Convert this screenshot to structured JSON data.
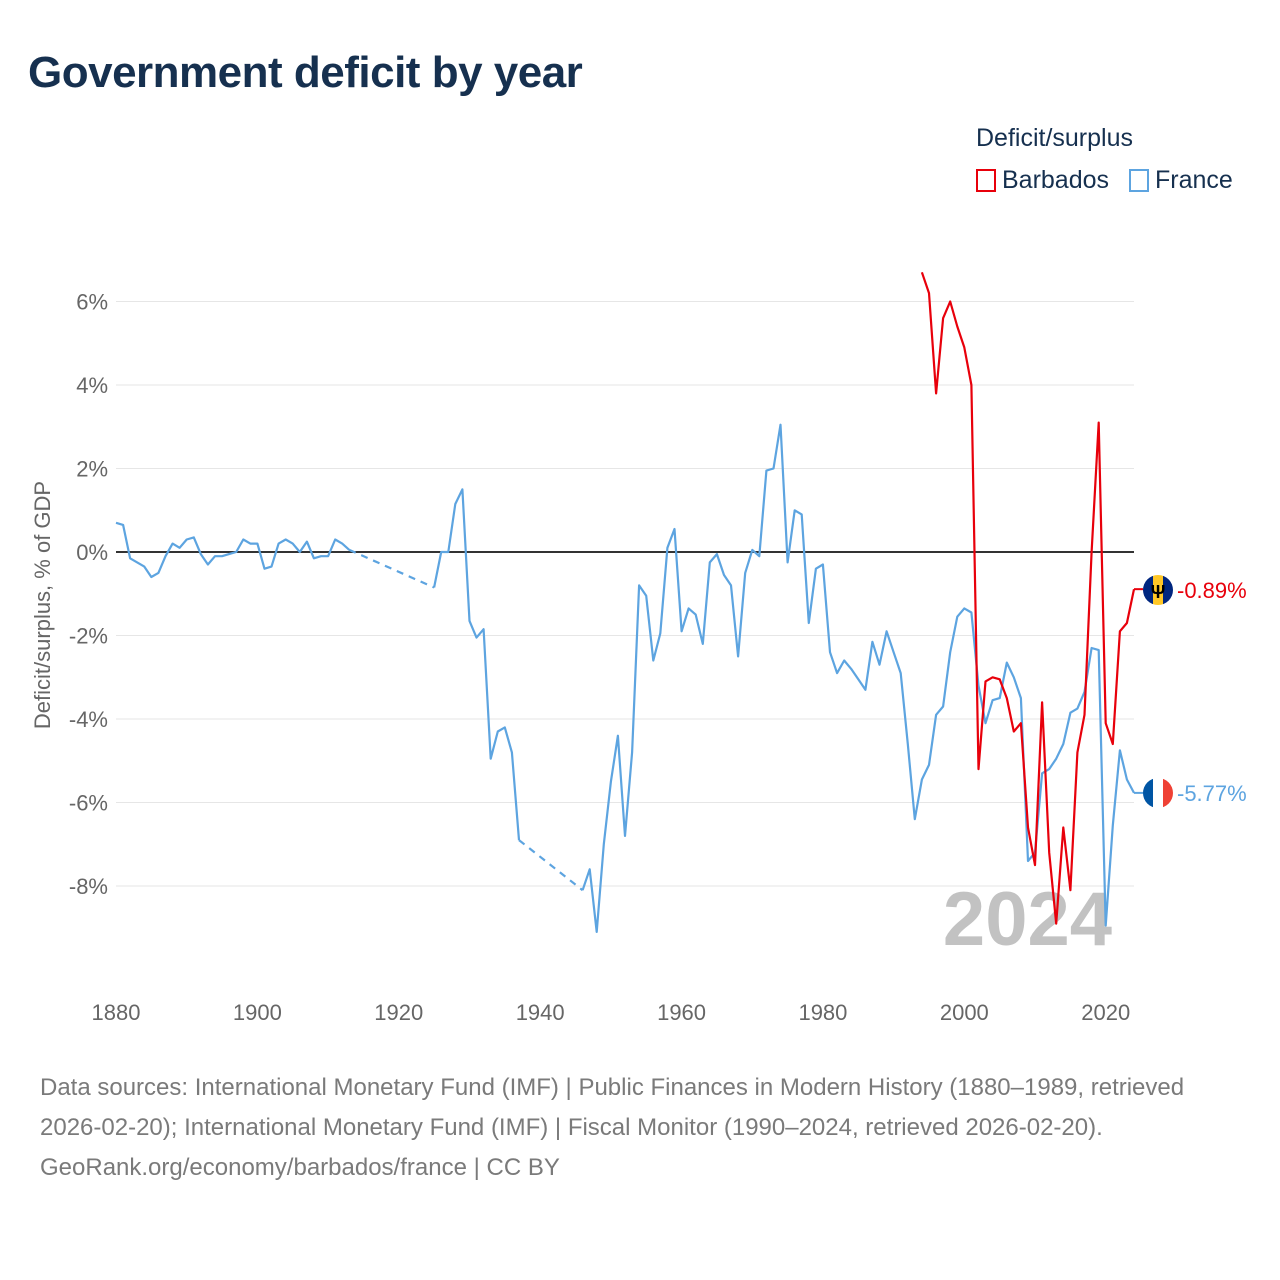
{
  "title": "Government deficit by year",
  "legend": {
    "title": "Deficit/surplus",
    "items": [
      {
        "name": "Barbados",
        "color": "#e8000b"
      },
      {
        "name": "France",
        "color": "#5da4e0"
      }
    ]
  },
  "year_watermark": "2024",
  "footer": {
    "sources": "Data sources: International Monetary Fund (IMF) | Public Finances in Modern History (1880–1989, retrieved 2026-02-20); International Monetary Fund (IMF) | Fiscal Monitor (1990–2024, retrieved 2026-02-20).",
    "credit": "GeoRank.org/economy/barbados/france | CC BY"
  },
  "chart_data": {
    "type": "line",
    "title": "Government deficit by year",
    "xlabel": "",
    "ylabel": "Deficit/surplus, % of GDP",
    "xlim": [
      1880,
      2024
    ],
    "ylim": [
      -10,
      7
    ],
    "x_ticks": [
      1880,
      1900,
      1920,
      1940,
      1960,
      1980,
      2000,
      2020
    ],
    "y_ticks": [
      -8,
      -6,
      -4,
      -2,
      0,
      2,
      4,
      6
    ],
    "y_tick_labels": [
      "-8%",
      "-6%",
      "-4%",
      "-2%",
      "0%",
      "2%",
      "4%",
      "6%"
    ],
    "zero_line": true,
    "series": [
      {
        "name": "Barbados",
        "color": "#e8000b",
        "end_label": "-0.89%",
        "flag": "barbados",
        "points": [
          [
            1994,
            6.7
          ],
          [
            1995,
            6.2
          ],
          [
            1996,
            3.8
          ],
          [
            1997,
            5.6
          ],
          [
            1998,
            6.0
          ],
          [
            1999,
            5.4
          ],
          [
            2000,
            4.9
          ],
          [
            2001,
            4.0
          ],
          [
            2002,
            -5.2
          ],
          [
            2003,
            -3.1
          ],
          [
            2004,
            -3.0
          ],
          [
            2005,
            -3.05
          ],
          [
            2006,
            -3.5
          ],
          [
            2007,
            -4.3
          ],
          [
            2008,
            -4.1
          ],
          [
            2009,
            -6.6
          ],
          [
            2010,
            -7.5
          ],
          [
            2011,
            -3.6
          ],
          [
            2012,
            -7.2
          ],
          [
            2013,
            -8.9
          ],
          [
            2014,
            -6.6
          ],
          [
            2015,
            -8.1
          ],
          [
            2016,
            -4.8
          ],
          [
            2017,
            -3.9
          ],
          [
            2018,
            0.0
          ],
          [
            2019,
            3.1
          ],
          [
            2020,
            -4.1
          ],
          [
            2021,
            -4.6
          ],
          [
            2022,
            -1.9
          ],
          [
            2023,
            -1.7
          ],
          [
            2024,
            -0.89
          ]
        ]
      },
      {
        "name": "France",
        "color": "#5da4e0",
        "end_label": "-5.77%",
        "flag": "france",
        "segments": [
          {
            "style": "solid",
            "points": [
              [
                1880,
                0.7
              ],
              [
                1881,
                0.65
              ],
              [
                1882,
                -0.15
              ],
              [
                1883,
                -0.25
              ],
              [
                1884,
                -0.35
              ],
              [
                1885,
                -0.6
              ],
              [
                1886,
                -0.5
              ],
              [
                1887,
                -0.1
              ],
              [
                1888,
                0.2
              ],
              [
                1889,
                0.1
              ],
              [
                1890,
                0.3
              ],
              [
                1891,
                0.35
              ],
              [
                1892,
                -0.05
              ],
              [
                1893,
                -0.3
              ],
              [
                1894,
                -0.1
              ],
              [
                1895,
                -0.1
              ],
              [
                1896,
                -0.05
              ],
              [
                1897,
                0.0
              ],
              [
                1898,
                0.3
              ],
              [
                1899,
                0.2
              ],
              [
                1900,
                0.2
              ],
              [
                1901,
                -0.4
              ],
              [
                1902,
                -0.35
              ],
              [
                1903,
                0.2
              ],
              [
                1904,
                0.3
              ],
              [
                1905,
                0.2
              ],
              [
                1906,
                0.0
              ],
              [
                1907,
                0.25
              ],
              [
                1908,
                -0.15
              ],
              [
                1909,
                -0.1
              ],
              [
                1910,
                -0.1
              ],
              [
                1911,
                0.3
              ],
              [
                1912,
                0.2
              ],
              [
                1913,
                0.05
              ]
            ]
          },
          {
            "style": "dashed",
            "points": [
              [
                1913,
                0.05
              ],
              [
                1925,
                -0.85
              ]
            ]
          },
          {
            "style": "solid",
            "points": [
              [
                1925,
                -0.85
              ],
              [
                1926,
                0.0
              ],
              [
                1927,
                0.0
              ],
              [
                1928,
                1.15
              ],
              [
                1929,
                1.5
              ],
              [
                1930,
                -1.65
              ],
              [
                1931,
                -2.05
              ],
              [
                1932,
                -1.85
              ],
              [
                1933,
                -4.95
              ],
              [
                1934,
                -4.3
              ],
              [
                1935,
                -4.2
              ],
              [
                1936,
                -4.8
              ],
              [
                1937,
                -6.9
              ]
            ]
          },
          {
            "style": "dashed",
            "points": [
              [
                1937,
                -6.9
              ],
              [
                1946,
                -8.1
              ]
            ]
          },
          {
            "style": "solid",
            "points": [
              [
                1946,
                -8.1
              ],
              [
                1947,
                -7.6
              ],
              [
                1948,
                -9.1
              ],
              [
                1949,
                -7.0
              ],
              [
                1950,
                -5.5
              ],
              [
                1951,
                -4.4
              ],
              [
                1952,
                -6.8
              ],
              [
                1953,
                -4.8
              ],
              [
                1954,
                -0.8
              ],
              [
                1955,
                -1.05
              ],
              [
                1956,
                -2.6
              ],
              [
                1957,
                -1.95
              ],
              [
                1958,
                0.1
              ],
              [
                1959,
                0.55
              ],
              [
                1960,
                -1.9
              ],
              [
                1961,
                -1.35
              ],
              [
                1962,
                -1.5
              ],
              [
                1963,
                -2.2
              ],
              [
                1964,
                -0.25
              ],
              [
                1965,
                -0.05
              ],
              [
                1966,
                -0.55
              ],
              [
                1967,
                -0.8
              ],
              [
                1968,
                -2.5
              ],
              [
                1969,
                -0.5
              ],
              [
                1970,
                0.05
              ],
              [
                1971,
                -0.1
              ],
              [
                1972,
                1.95
              ],
              [
                1973,
                2.0
              ],
              [
                1974,
                3.05
              ],
              [
                1975,
                -0.25
              ],
              [
                1976,
                1.0
              ],
              [
                1977,
                0.9
              ],
              [
                1978,
                -1.7
              ],
              [
                1979,
                -0.4
              ],
              [
                1980,
                -0.3
              ],
              [
                1981,
                -2.4
              ],
              [
                1982,
                -2.9
              ],
              [
                1983,
                -2.6
              ],
              [
                1984,
                -2.8
              ],
              [
                1985,
                -3.05
              ],
              [
                1986,
                -3.3
              ],
              [
                1987,
                -2.15
              ],
              [
                1988,
                -2.7
              ],
              [
                1989,
                -1.9
              ],
              [
                1990,
                -2.4
              ],
              [
                1991,
                -2.9
              ],
              [
                1992,
                -4.6
              ],
              [
                1993,
                -6.4
              ],
              [
                1994,
                -5.45
              ],
              [
                1995,
                -5.1
              ],
              [
                1996,
                -3.9
              ],
              [
                1997,
                -3.7
              ],
              [
                1998,
                -2.4
              ],
              [
                1999,
                -1.55
              ],
              [
                2000,
                -1.35
              ],
              [
                2001,
                -1.45
              ],
              [
                2002,
                -3.2
              ],
              [
                2003,
                -4.1
              ],
              [
                2004,
                -3.55
              ],
              [
                2005,
                -3.5
              ],
              [
                2006,
                -2.65
              ],
              [
                2007,
                -3.0
              ],
              [
                2008,
                -3.5
              ],
              [
                2009,
                -7.4
              ],
              [
                2010,
                -7.2
              ],
              [
                2011,
                -5.3
              ],
              [
                2012,
                -5.2
              ],
              [
                2013,
                -4.95
              ],
              [
                2014,
                -4.6
              ],
              [
                2015,
                -3.85
              ],
              [
                2016,
                -3.75
              ],
              [
                2017,
                -3.35
              ],
              [
                2018,
                -2.3
              ],
              [
                2019,
                -2.35
              ],
              [
                2020,
                -8.95
              ],
              [
                2021,
                -6.55
              ],
              [
                2022,
                -4.75
              ],
              [
                2023,
                -5.45
              ],
              [
                2024,
                -5.77
              ]
            ]
          }
        ]
      }
    ]
  }
}
